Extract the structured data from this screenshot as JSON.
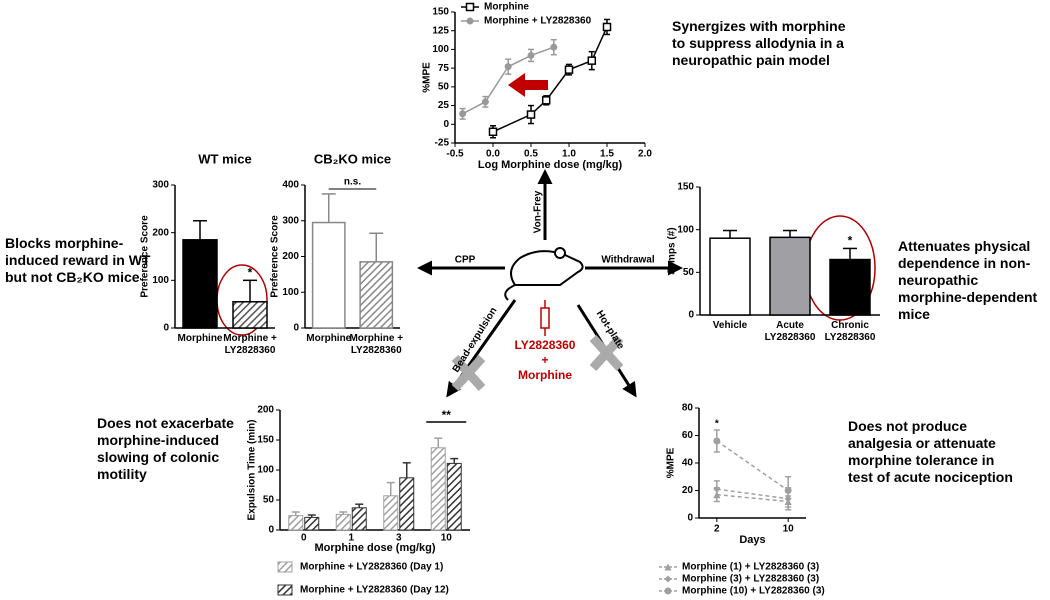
{
  "captions": {
    "top": "Synergizes with morphine to suppress allodynia in a neuropathic pain model",
    "left": "Blocks morphine-induced reward in WT but not CB₂KO mice",
    "right": "Attenuates physical dependence in non-neuropathic morphine-dependent mice",
    "bottom_left": "Does not exacerbate morphine-induced slowing of colonic motility",
    "bottom_right": "Does not produce analgesia or attenuate morphine tolerance in test of acute nociception"
  },
  "diagram": {
    "von_frey": "Von-Frey",
    "cpp": "CPP",
    "withdrawal": "Withdrawal",
    "bead": "Bead-expulsion",
    "hot_plate": "Hot-plate",
    "drug": "LY2828360",
    "plus": "+",
    "morphine": "Morphine"
  },
  "chart_data": [
    {
      "type": "line",
      "xlabel": "Log Morphine dose (mg/kg)",
      "ylabel": "%MPE",
      "xlim": [
        -0.5,
        2.0
      ],
      "xticks": [
        -0.5,
        {
          "value": 0,
          "label": "0.0"
        },
        0.5,
        {
          "value": 1,
          "label": "1.0"
        },
        1.5,
        {
          "value": 2,
          "label": "2.0"
        }
      ],
      "ylim": [
        -25,
        150
      ],
      "yticks": [
        -25,
        0,
        25,
        50,
        75,
        100,
        125,
        150
      ],
      "series": [
        {
          "name": "Morphine",
          "color": "#000000",
          "marker": "square",
          "x": [
            0.0,
            0.5,
            0.7,
            1.0,
            1.3,
            1.5
          ],
          "values": [
            -10,
            13,
            32,
            73,
            85,
            130
          ],
          "errors": [
            8,
            12,
            6,
            7,
            12,
            10
          ]
        },
        {
          "name": "Morphine + LY2828360",
          "color": "#999999",
          "marker": "circle",
          "x": [
            -0.4,
            -0.1,
            0.2,
            0.5,
            0.8
          ],
          "values": [
            14,
            30,
            77,
            92,
            103
          ],
          "errors": [
            7,
            7,
            10,
            8,
            10
          ]
        }
      ]
    },
    {
      "type": "bar",
      "title": "WT mice",
      "ylabel": "Preference Score",
      "categories": [
        "Morphine",
        "Morphine + LY2828360"
      ],
      "values": [
        185,
        55
      ],
      "errors": [
        40,
        45
      ],
      "colors": [
        "#000000",
        "#555555"
      ],
      "hatched": [
        false,
        true
      ],
      "edge_color": "#000000",
      "ylim": [
        0,
        300
      ],
      "yticks": [
        0,
        100,
        200,
        300
      ],
      "annotation": "*"
    },
    {
      "type": "bar",
      "title": "CB₂KO mice",
      "ylabel": "Preference Score",
      "categories": [
        "Morphine",
        "Morphine + LY2828360"
      ],
      "values": [
        295,
        185
      ],
      "errors": [
        80,
        80
      ],
      "colors": [
        "#ffffff",
        "#888888"
      ],
      "hatched": [
        false,
        true
      ],
      "edge_color": "#888888",
      "ylim": [
        0,
        400
      ],
      "yticks": [
        0,
        100,
        200,
        300,
        400
      ],
      "annotation": "n.s."
    },
    {
      "type": "bar",
      "ylabel": "Jumps (#)",
      "categories": [
        "Vehicle",
        "Acute LY2828360",
        "Chronic LY2828360"
      ],
      "values": [
        90,
        91,
        65
      ],
      "errors": [
        9,
        8,
        13
      ],
      "colors": [
        "#ffffff",
        "#a0a0a4",
        "#000000"
      ],
      "hatched": [
        false,
        false,
        false
      ],
      "edge_color": "#000000",
      "ylim": [
        0,
        150
      ],
      "yticks": [
        0,
        50,
        100,
        150
      ],
      "annotation": "*"
    },
    {
      "type": "bar",
      "ylabel": "Expulsion Time (min)",
      "xlabel": "Morphine dose (mg/kg)",
      "categories": [
        "0",
        "1",
        "3",
        "10"
      ],
      "series": [
        {
          "name": "Morphine + LY2828360 (Day 1)",
          "color": "#a0a0a0",
          "values": [
            24,
            26,
            57,
            137
          ],
          "errors": [
            6,
            4,
            22,
            16
          ]
        },
        {
          "name": "Morphine + LY2828360 (Day 12)",
          "color": "#333333",
          "values": [
            21,
            37,
            87,
            111
          ],
          "errors": [
            4,
            6,
            25,
            8
          ]
        }
      ],
      "ylim": [
        0,
        200
      ],
      "yticks": [
        0,
        50,
        100,
        150,
        200
      ],
      "annotation": "**"
    },
    {
      "type": "line",
      "xlabel": "Days",
      "ylabel": "%MPE",
      "x": [
        2,
        10
      ],
      "xlim": [
        0,
        12
      ],
      "xticks": [
        2,
        10
      ],
      "ylim": [
        0,
        80
      ],
      "yticks": [
        0,
        20,
        40,
        60,
        80
      ],
      "linestyle": "dashed",
      "series": [
        {
          "name": "Morphine (1) + LY2828360 (3)",
          "color": "#a0a0a0",
          "marker": "triangle",
          "values": [
            17,
            12
          ],
          "errors": [
            5,
            4
          ]
        },
        {
          "name": "Morphine (3) + LY2828360 (3)",
          "color": "#a0a0a0",
          "marker": "diamond",
          "values": [
            21,
            14
          ],
          "errors": [
            6,
            8
          ]
        },
        {
          "name": "Morphine (10) + LY2828360 (3)",
          "color": "#a0a0a0",
          "marker": "circle",
          "values": [
            56,
            20
          ],
          "errors": [
            8,
            10
          ]
        }
      ],
      "annotation": "*"
    }
  ]
}
